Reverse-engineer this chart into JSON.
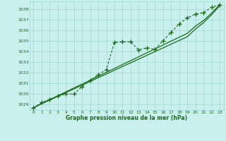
{
  "bg_color": "#caf0ee",
  "grid_color": "#a0d8d5",
  "line_color": "#1a6b1a",
  "xlim": [
    -0.5,
    23.5
  ],
  "ylim": [
    1028.5,
    1038.7
  ],
  "yticks": [
    1029,
    1030,
    1031,
    1032,
    1033,
    1034,
    1035,
    1036,
    1037,
    1038
  ],
  "xticks": [
    0,
    1,
    2,
    3,
    4,
    5,
    6,
    7,
    8,
    9,
    10,
    11,
    12,
    13,
    14,
    15,
    16,
    17,
    18,
    19,
    20,
    21,
    22,
    23
  ],
  "series_marker": [
    1028.7,
    1029.2,
    1029.5,
    1029.8,
    1030.0,
    1030.0,
    1030.7,
    1031.3,
    1031.8,
    1032.3,
    1034.85,
    1034.9,
    1034.9,
    1034.15,
    1034.35,
    1034.2,
    1035.0,
    1035.8,
    1036.6,
    1037.15,
    1037.5,
    1037.65,
    1038.15,
    1038.4
  ],
  "series_straight1": [
    1028.7,
    1029.1,
    1029.47,
    1029.83,
    1030.2,
    1030.57,
    1030.93,
    1031.3,
    1031.67,
    1032.03,
    1032.4,
    1032.77,
    1033.13,
    1033.5,
    1033.87,
    1034.23,
    1034.6,
    1034.97,
    1035.33,
    1035.7,
    1036.37,
    1036.9,
    1037.6,
    1038.4
  ],
  "series_straight2": [
    1028.7,
    1029.08,
    1029.43,
    1029.78,
    1030.13,
    1030.48,
    1030.83,
    1031.18,
    1031.53,
    1031.88,
    1032.23,
    1032.58,
    1032.93,
    1033.28,
    1033.63,
    1033.98,
    1034.33,
    1034.68,
    1035.03,
    1035.38,
    1036.1,
    1036.7,
    1037.45,
    1038.3
  ],
  "xlabel": "Graphe pression niveau de la mer (hPa)"
}
